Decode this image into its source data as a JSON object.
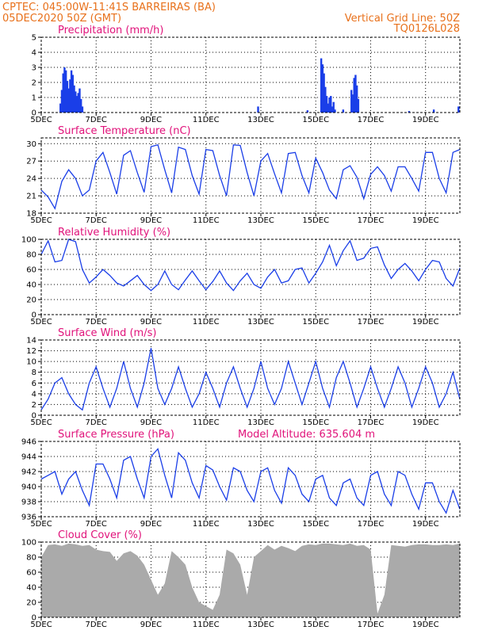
{
  "header": {
    "line1": "CPTEC:   045:00W-11:41S   BARREIRAS (BA)",
    "line2": "05DEC2020 50Z (GMT)",
    "grid_note": "Vertical Grid Line: 50Z",
    "code": "TQ0126L028"
  },
  "colors": {
    "line": "#1a3ee8",
    "bar": "#1a3ee8",
    "cloud": "#aaaaaa",
    "header": "#e8701a",
    "title": "#e0127a"
  },
  "x_ticks": [
    "5DEC",
    "7DEC",
    "9DEC",
    "11DEC",
    "13DEC",
    "15DEC",
    "17DEC",
    "19DEC"
  ],
  "chart_data": [
    {
      "type": "bar",
      "title": "Precipitation (mm/h)",
      "ylim": [
        0,
        5
      ],
      "yticks": [
        0,
        1,
        2,
        3,
        4,
        5
      ],
      "x_days": [
        0.7,
        0.75,
        0.8,
        0.85,
        0.9,
        0.95,
        1.0,
        1.05,
        1.1,
        1.15,
        1.2,
        1.25,
        1.3,
        1.35,
        1.4,
        1.45,
        1.5,
        7.9,
        9.7,
        10.2,
        10.25,
        10.3,
        10.35,
        10.4,
        10.45,
        10.5,
        10.55,
        10.6,
        10.65,
        10.7,
        11.0,
        11.3,
        11.35,
        11.4,
        11.45,
        11.5,
        11.55,
        13.4,
        14.3,
        15.2
      ],
      "values": [
        0.6,
        1.5,
        2.6,
        3.0,
        2.8,
        2.1,
        1.6,
        2.2,
        2.8,
        2.5,
        1.8,
        1.4,
        1.1,
        1.3,
        1.6,
        0.9,
        0.4,
        0.4,
        0.15,
        3.6,
        3.2,
        2.6,
        1.7,
        1.1,
        0.6,
        1.0,
        1.1,
        0.4,
        0.7,
        0.2,
        0.2,
        1.5,
        1.2,
        2.3,
        2.5,
        1.8,
        0.9,
        0.1,
        0.2,
        0.4
      ]
    },
    {
      "type": "line",
      "title": "Surface Temperature (nC)",
      "ylim": [
        18,
        31
      ],
      "yticks": [
        18,
        21,
        24,
        27,
        30
      ],
      "x_days": [
        0,
        0.25,
        0.5,
        0.75,
        1,
        1.25,
        1.5,
        1.75,
        2,
        2.25,
        2.5,
        2.75,
        3,
        3.25,
        3.5,
        3.75,
        4,
        4.25,
        4.5,
        4.75,
        5,
        5.25,
        5.5,
        5.75,
        6,
        6.25,
        6.5,
        6.75,
        7,
        7.25,
        7.5,
        7.75,
        8,
        8.25,
        8.5,
        8.75,
        9,
        9.25,
        9.5,
        9.75,
        10,
        10.25,
        10.5,
        10.75,
        11,
        11.25,
        11.5,
        11.75,
        12,
        12.25,
        12.5,
        12.75,
        13,
        13.25,
        13.5,
        13.75,
        14,
        14.25,
        14.5,
        14.75,
        15,
        15.25
      ],
      "values": [
        22,
        20.8,
        18.8,
        23.5,
        25.5,
        24,
        21,
        22,
        27,
        28.5,
        25,
        21.3,
        28,
        28.8,
        25,
        21.6,
        29.5,
        29.8,
        25.5,
        21.5,
        29.4,
        29,
        24.5,
        21.3,
        29,
        28.8,
        24.5,
        21,
        29.8,
        29.7,
        25,
        21,
        27,
        28.3,
        24.8,
        21.5,
        28.3,
        28.5,
        24.5,
        21.5,
        27.5,
        25,
        22,
        20.5,
        25.5,
        26.2,
        24.2,
        20.5,
        24.7,
        26,
        24.5,
        21.8,
        26,
        26,
        24,
        21.8,
        28.5,
        28.5,
        24,
        21.5,
        28.5,
        29
      ]
    },
    {
      "type": "line",
      "title": "Relative Humidity (%)",
      "ylim": [
        0,
        100
      ],
      "yticks": [
        0,
        20,
        40,
        60,
        80,
        100
      ],
      "x_days": [
        0,
        0.25,
        0.5,
        0.75,
        1,
        1.25,
        1.5,
        1.75,
        2,
        2.25,
        2.5,
        2.75,
        3,
        3.25,
        3.5,
        3.75,
        4,
        4.25,
        4.5,
        4.75,
        5,
        5.25,
        5.5,
        5.75,
        6,
        6.25,
        6.5,
        6.75,
        7,
        7.25,
        7.5,
        7.75,
        8,
        8.25,
        8.5,
        8.75,
        9,
        9.25,
        9.5,
        9.75,
        10,
        10.25,
        10.5,
        10.75,
        11,
        11.25,
        11.5,
        11.75,
        12,
        12.25,
        12.5,
        12.75,
        13,
        13.25,
        13.5,
        13.75,
        14,
        14.25,
        14.5,
        14.75,
        15,
        15.25
      ],
      "values": [
        80,
        98,
        70,
        72,
        100,
        97,
        60,
        42,
        50,
        60,
        52,
        42,
        38,
        45,
        52,
        40,
        32,
        40,
        58,
        40,
        33,
        46,
        58,
        45,
        33,
        44,
        58,
        42,
        32,
        45,
        55,
        40,
        35,
        50,
        60,
        42,
        45,
        60,
        62,
        42,
        55,
        70,
        92,
        65,
        85,
        98,
        72,
        75,
        88,
        90,
        66,
        48,
        60,
        68,
        58,
        45,
        60,
        72,
        70,
        48,
        38,
        62
      ]
    },
    {
      "type": "line",
      "title": "Surface Wind (m/s)",
      "ylim": [
        0,
        14
      ],
      "yticks": [
        0,
        2,
        4,
        6,
        8,
        10,
        12,
        14
      ],
      "x_days": [
        0,
        0.25,
        0.5,
        0.75,
        1,
        1.25,
        1.5,
        1.75,
        2,
        2.25,
        2.5,
        2.75,
        3,
        3.25,
        3.5,
        3.75,
        4,
        4.25,
        4.5,
        4.75,
        5,
        5.25,
        5.5,
        5.75,
        6,
        6.25,
        6.5,
        6.75,
        7,
        7.25,
        7.5,
        7.75,
        8,
        8.25,
        8.5,
        8.75,
        9,
        9.25,
        9.5,
        9.75,
        10,
        10.25,
        10.5,
        10.75,
        11,
        11.25,
        11.5,
        11.75,
        12,
        12.25,
        12.5,
        12.75,
        13,
        13.25,
        13.5,
        13.75,
        14,
        14.25,
        14.5,
        14.75,
        15,
        15.25
      ],
      "values": [
        1,
        3,
        6,
        7,
        4,
        2,
        1,
        6,
        9,
        5,
        1.5,
        5,
        10,
        5,
        1.5,
        6,
        12.5,
        5,
        2,
        5,
        9,
        5,
        1.5,
        4,
        8,
        5,
        1.5,
        6,
        9,
        5,
        1.5,
        5,
        10,
        5,
        2,
        5,
        10,
        6,
        2,
        6,
        10,
        5,
        1.5,
        7,
        10,
        6,
        1.5,
        5,
        9,
        5,
        1.5,
        5,
        9,
        6,
        1.5,
        5,
        9,
        6,
        1.5,
        4,
        8,
        3
      ]
    },
    {
      "type": "line",
      "title": "Surface Pressure (hPa)",
      "annotation": "Model Altitude: 635.604  m",
      "ylim": [
        936,
        946
      ],
      "yticks": [
        936,
        938,
        940,
        942,
        944,
        946
      ],
      "x_days": [
        0,
        0.25,
        0.5,
        0.75,
        1,
        1.25,
        1.5,
        1.75,
        2,
        2.25,
        2.5,
        2.75,
        3,
        3.25,
        3.5,
        3.75,
        4,
        4.25,
        4.5,
        4.75,
        5,
        5.25,
        5.5,
        5.75,
        6,
        6.25,
        6.5,
        6.75,
        7,
        7.25,
        7.5,
        7.75,
        8,
        8.25,
        8.5,
        8.75,
        9,
        9.25,
        9.5,
        9.75,
        10,
        10.25,
        10.5,
        10.75,
        11,
        11.25,
        11.5,
        11.75,
        12,
        12.25,
        12.5,
        12.75,
        13,
        13.25,
        13.5,
        13.75,
        14,
        14.25,
        14.5,
        14.75,
        15,
        15.25
      ],
      "values": [
        941,
        941.5,
        942,
        939,
        941,
        942,
        939.5,
        937.5,
        943,
        943,
        941,
        938.5,
        943.5,
        944,
        941,
        938.5,
        944,
        945,
        941.5,
        938.5,
        944.5,
        943.5,
        940.5,
        938.5,
        942.8,
        942.2,
        940,
        938.2,
        942.5,
        942,
        939.5,
        938,
        942,
        942.5,
        939.5,
        937.8,
        942.5,
        941.5,
        939,
        938,
        941,
        941.5,
        938.5,
        937.5,
        940.5,
        941,
        938.5,
        937.5,
        941.5,
        942,
        939,
        937.5,
        942,
        941.5,
        939,
        937,
        940.5,
        940.5,
        938,
        936.5,
        939.5,
        937
      ]
    },
    {
      "type": "area",
      "title": "Cloud Cover (%)",
      "ylim": [
        0,
        100
      ],
      "yticks": [
        0,
        20,
        40,
        60,
        80,
        100
      ],
      "x_days": [
        0,
        0.25,
        0.5,
        0.75,
        1,
        1.25,
        1.5,
        1.75,
        2,
        2.25,
        2.5,
        2.75,
        3,
        3.25,
        3.5,
        3.75,
        4,
        4.25,
        4.5,
        4.75,
        5,
        5.25,
        5.5,
        5.75,
        6,
        6.25,
        6.5,
        6.75,
        7,
        7.25,
        7.5,
        7.75,
        8,
        8.25,
        8.5,
        8.75,
        9,
        9.25,
        9.5,
        9.75,
        10,
        10.25,
        10.5,
        10.75,
        11,
        11.25,
        11.5,
        11.75,
        12,
        12.25,
        12.5,
        12.75,
        13,
        13.25,
        13.5,
        13.75,
        14,
        14.25,
        14.5,
        14.75,
        15,
        15.25
      ],
      "values": [
        80,
        96,
        97,
        95,
        98,
        97,
        95,
        96,
        90,
        88,
        87,
        75,
        85,
        88,
        82,
        70,
        50,
        30,
        45,
        88,
        80,
        70,
        40,
        20,
        15,
        10,
        30,
        90,
        85,
        70,
        30,
        80,
        88,
        96,
        90,
        95,
        92,
        88,
        95,
        97,
        96,
        98,
        98,
        97,
        96,
        98,
        95,
        96,
        90,
        5,
        30,
        96,
        95,
        94,
        96,
        97,
        97,
        96,
        96,
        97,
        96,
        98
      ]
    }
  ]
}
